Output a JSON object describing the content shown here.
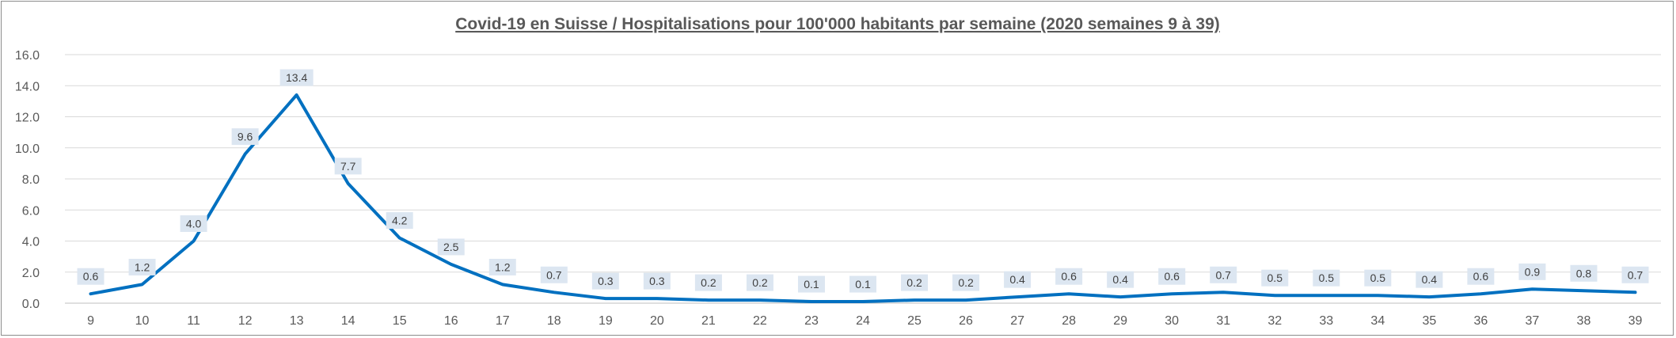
{
  "chart_data": {
    "type": "line",
    "title": "Covid-19 en Suisse / Hospitalisations pour 100'000 habitants par semaine (2020 semaines 9 à 39)",
    "xlabel": "",
    "ylabel": "",
    "ylim": [
      0,
      16
    ],
    "y_ticks": [
      "0.0",
      "2.0",
      "4.0",
      "6.0",
      "8.0",
      "10.0",
      "12.0",
      "14.0",
      "16.0"
    ],
    "categories": [
      "9",
      "10",
      "11",
      "12",
      "13",
      "14",
      "15",
      "16",
      "17",
      "18",
      "19",
      "20",
      "21",
      "22",
      "23",
      "24",
      "25",
      "26",
      "27",
      "28",
      "29",
      "30",
      "31",
      "32",
      "33",
      "34",
      "35",
      "36",
      "37",
      "38",
      "39"
    ],
    "values": [
      0.6,
      1.2,
      4.0,
      9.6,
      13.4,
      7.7,
      4.2,
      2.5,
      1.2,
      0.7,
      0.3,
      0.3,
      0.2,
      0.2,
      0.1,
      0.1,
      0.2,
      0.2,
      0.4,
      0.6,
      0.4,
      0.6,
      0.7,
      0.5,
      0.5,
      0.5,
      0.4,
      0.6,
      0.9,
      0.8,
      0.7
    ],
    "labels": [
      "0.6",
      "1.2",
      "4.0",
      "9.6",
      "13.4",
      "7.7",
      "4.2",
      "2.5",
      "1.2",
      "0.7",
      "0.3",
      "0.3",
      "0.2",
      "0.2",
      "0.1",
      "0.1",
      "0.2",
      "0.2",
      "0.4",
      "0.6",
      "0.4",
      "0.6",
      "0.7",
      "0.5",
      "0.5",
      "0.5",
      "0.4",
      "0.6",
      "0.9",
      "0.8",
      "0.7"
    ],
    "grid": true,
    "legend": "none",
    "colors": {
      "line": "#0070c0",
      "label_bg": "#dce6f1"
    }
  }
}
